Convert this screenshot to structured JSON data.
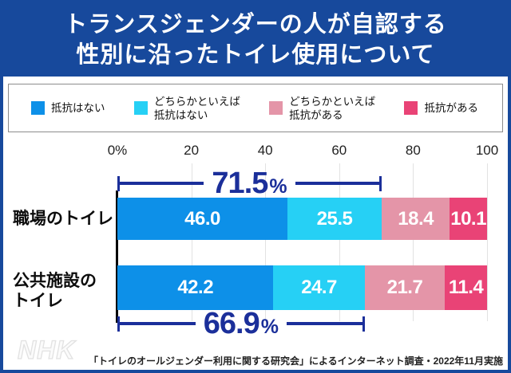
{
  "title": {
    "line1": "トランスジェンダーの人が自認する",
    "line2": "性別に沿ったトイレ使用について"
  },
  "legend": {
    "items": [
      {
        "line1": "抵抗はない",
        "line2": ""
      },
      {
        "line1": "どちらかといえば",
        "line2": "抵抗はない"
      },
      {
        "line1": "どちらかといえば",
        "line2": "抵抗がある"
      },
      {
        "line1": "抵抗がある",
        "line2": ""
      }
    ]
  },
  "chart_data": {
    "type": "bar",
    "orientation": "horizontal",
    "stacked": true,
    "unit": "%",
    "xlim": [
      0,
      100
    ],
    "x_ticks": [
      "0%",
      "20",
      "40",
      "60",
      "80",
      "100"
    ],
    "grid": true,
    "categories": [
      "職場のトイレ",
      "公共施設のトイレ"
    ],
    "category_display": [
      [
        "職場のトイレ"
      ],
      [
        "公共施設の",
        "トイレ"
      ]
    ],
    "series": [
      {
        "name": "抵抗はない",
        "color": "#0d90e8",
        "values": [
          46.0,
          42.2
        ],
        "labels": [
          "46.0",
          "42.2"
        ]
      },
      {
        "name": "どちらかといえば抵抗はない",
        "color": "#26d0f5",
        "values": [
          25.5,
          24.7
        ],
        "labels": [
          "25.5",
          "24.7"
        ]
      },
      {
        "name": "どちらかといえば抵抗がある",
        "color": "#e495a8",
        "values": [
          18.4,
          21.7
        ],
        "labels": [
          "18.4",
          "21.7"
        ]
      },
      {
        "name": "抵抗がある",
        "color": "#e94376",
        "values": [
          10.1,
          11.4
        ],
        "labels": [
          "10.1",
          "11.4"
        ]
      }
    ],
    "annotations": [
      {
        "row": "職場のトイレ",
        "text": "71.5",
        "unit": "%",
        "value": 71.5,
        "span_from": 0,
        "span_to": 71.5,
        "position": "above"
      },
      {
        "row": "公共施設のトイレ",
        "text": "66.9",
        "unit": "%",
        "value": 66.9,
        "span_from": 0,
        "span_to": 66.9,
        "position": "below"
      }
    ]
  },
  "footer": {
    "source": "「トイレのオールジェンダー利用に関する研究会」によるインターネット調査・2022年11月実施",
    "logo": "NHK"
  },
  "colors": {
    "banner_bg": "#17499c",
    "banner_text": "#ffffff",
    "annotation_navy": "#1b2f9a",
    "axis_line": "#000000",
    "gridline": "#e2e2e2",
    "legend_border": "#8c8c8c"
  }
}
